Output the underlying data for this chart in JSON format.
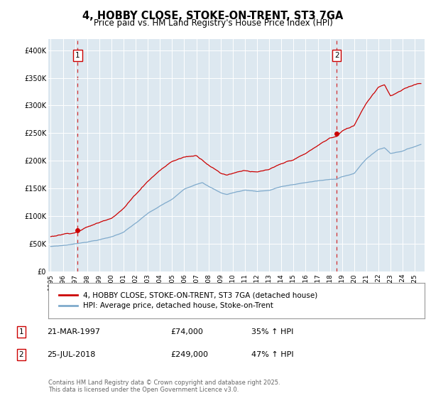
{
  "title": "4, HOBBY CLOSE, STOKE-ON-TRENT, ST3 7GA",
  "subtitle": "Price paid vs. HM Land Registry's House Price Index (HPI)",
  "sale1_date": "21-MAR-1997",
  "sale1_price": 74000,
  "sale1_hpi": "35% ↑ HPI",
  "sale1_label": "1",
  "sale1_year": 1997.22,
  "sale2_date": "25-JUL-2018",
  "sale2_price": 249000,
  "sale2_hpi": "47% ↑ HPI",
  "sale2_label": "2",
  "sale2_year": 2018.56,
  "legend_line1": "4, HOBBY CLOSE, STOKE-ON-TRENT, ST3 7GA (detached house)",
  "legend_line2": "HPI: Average price, detached house, Stoke-on-Trent",
  "footer": "Contains HM Land Registry data © Crown copyright and database right 2025.\nThis data is licensed under the Open Government Licence v3.0.",
  "price_line_color": "#cc0000",
  "hpi_line_color": "#7faacc",
  "dashed_line_color": "#cc0000",
  "plot_bg_color": "#dde8f0",
  "yticks": [
    0,
    50000,
    100000,
    150000,
    200000,
    250000,
    300000,
    350000,
    400000
  ],
  "ylim": [
    0,
    420000
  ],
  "xlim": [
    1994.8,
    2025.8
  ]
}
